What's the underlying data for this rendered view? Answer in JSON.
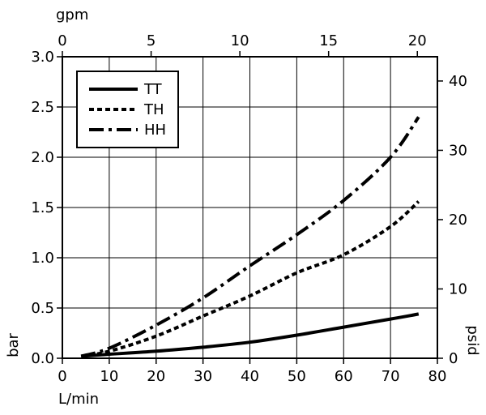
{
  "chart_data": {
    "type": "line",
    "xlabel": "L/min",
    "ylabel": "bar",
    "top_xlabel": "gpm",
    "right_ylabel": "psid",
    "xlim": [
      0,
      80
    ],
    "ylim": [
      0,
      3.0
    ],
    "top_xlim": [
      0,
      21.13
    ],
    "right_ylim": [
      0,
      43.5
    ],
    "x_ticks": [
      "0",
      "10",
      "20",
      "30",
      "40",
      "50",
      "60",
      "70",
      "80"
    ],
    "x_tick_values": [
      0,
      10,
      20,
      30,
      40,
      50,
      60,
      70,
      80
    ],
    "y_ticks": [
      "0.0",
      "0.5",
      "1.0",
      "1.5",
      "2.0",
      "2.5",
      "3.0"
    ],
    "y_tick_values": [
      0,
      0.5,
      1.0,
      1.5,
      2.0,
      2.5,
      3.0
    ],
    "top_ticks": [
      "0",
      "5",
      "10",
      "15",
      "20"
    ],
    "top_tick_values": [
      0,
      5,
      10,
      15,
      20
    ],
    "right_ticks": [
      "0",
      "10",
      "20",
      "30",
      "40"
    ],
    "right_tick_values": [
      0,
      10,
      20,
      30,
      40
    ],
    "grid": true,
    "legend_position": "top-left",
    "series": [
      {
        "name": "TT",
        "style": "solid",
        "x": [
          4,
          10,
          20,
          30,
          40,
          50,
          60,
          70,
          76
        ],
        "y": [
          0.02,
          0.04,
          0.07,
          0.11,
          0.16,
          0.23,
          0.31,
          0.39,
          0.44
        ]
      },
      {
        "name": "TH",
        "style": "dotted",
        "x": [
          4,
          10,
          20,
          30,
          40,
          50,
          60,
          70,
          76
        ],
        "y": [
          0.02,
          0.07,
          0.22,
          0.42,
          0.62,
          0.85,
          1.03,
          1.31,
          1.56
        ]
      },
      {
        "name": "HH",
        "style": "dashdot",
        "x": [
          4,
          10,
          20,
          30,
          40,
          50,
          60,
          70,
          76
        ],
        "y": [
          0.02,
          0.1,
          0.33,
          0.6,
          0.92,
          1.23,
          1.57,
          2.0,
          2.4
        ]
      }
    ]
  }
}
